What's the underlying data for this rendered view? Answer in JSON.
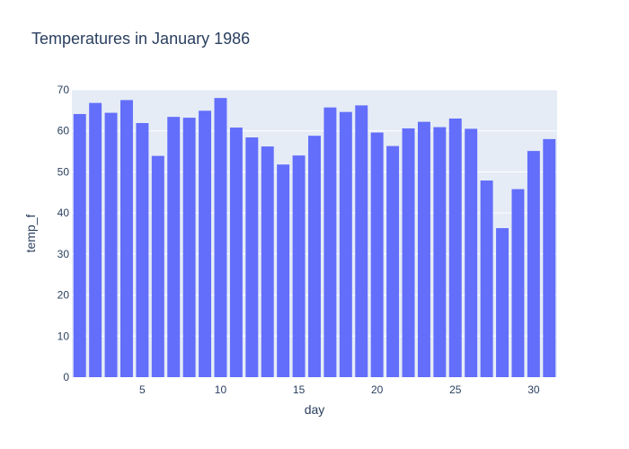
{
  "chart_data": {
    "type": "bar",
    "title": "Temperatures in January 1986",
    "xlabel": "day",
    "ylabel": "temp_f",
    "x": [
      1,
      2,
      3,
      4,
      5,
      6,
      7,
      8,
      9,
      10,
      11,
      12,
      13,
      14,
      15,
      16,
      17,
      18,
      19,
      20,
      21,
      22,
      23,
      24,
      25,
      26,
      27,
      28,
      29,
      30,
      31
    ],
    "values": [
      64.1,
      66.8,
      64.4,
      67.5,
      61.9,
      53.9,
      63.4,
      63.2,
      64.9,
      68.0,
      60.8,
      58.4,
      56.2,
      51.8,
      54.0,
      58.8,
      65.7,
      64.6,
      66.2,
      59.6,
      56.3,
      60.6,
      62.2,
      60.9,
      63.0,
      60.5,
      47.9,
      36.3,
      45.8,
      55.1,
      58.0
    ],
    "xlim": [
      0.5,
      31.5
    ],
    "ylim": [
      0,
      70
    ],
    "xticks": [
      5,
      10,
      15,
      20,
      25,
      30
    ],
    "yticks": [
      0,
      10,
      20,
      30,
      40,
      50,
      60,
      70
    ],
    "grid": true,
    "bar_color": "#636efa",
    "plot_background": "#e5ecf6",
    "text_color": "#2a3f5f"
  }
}
